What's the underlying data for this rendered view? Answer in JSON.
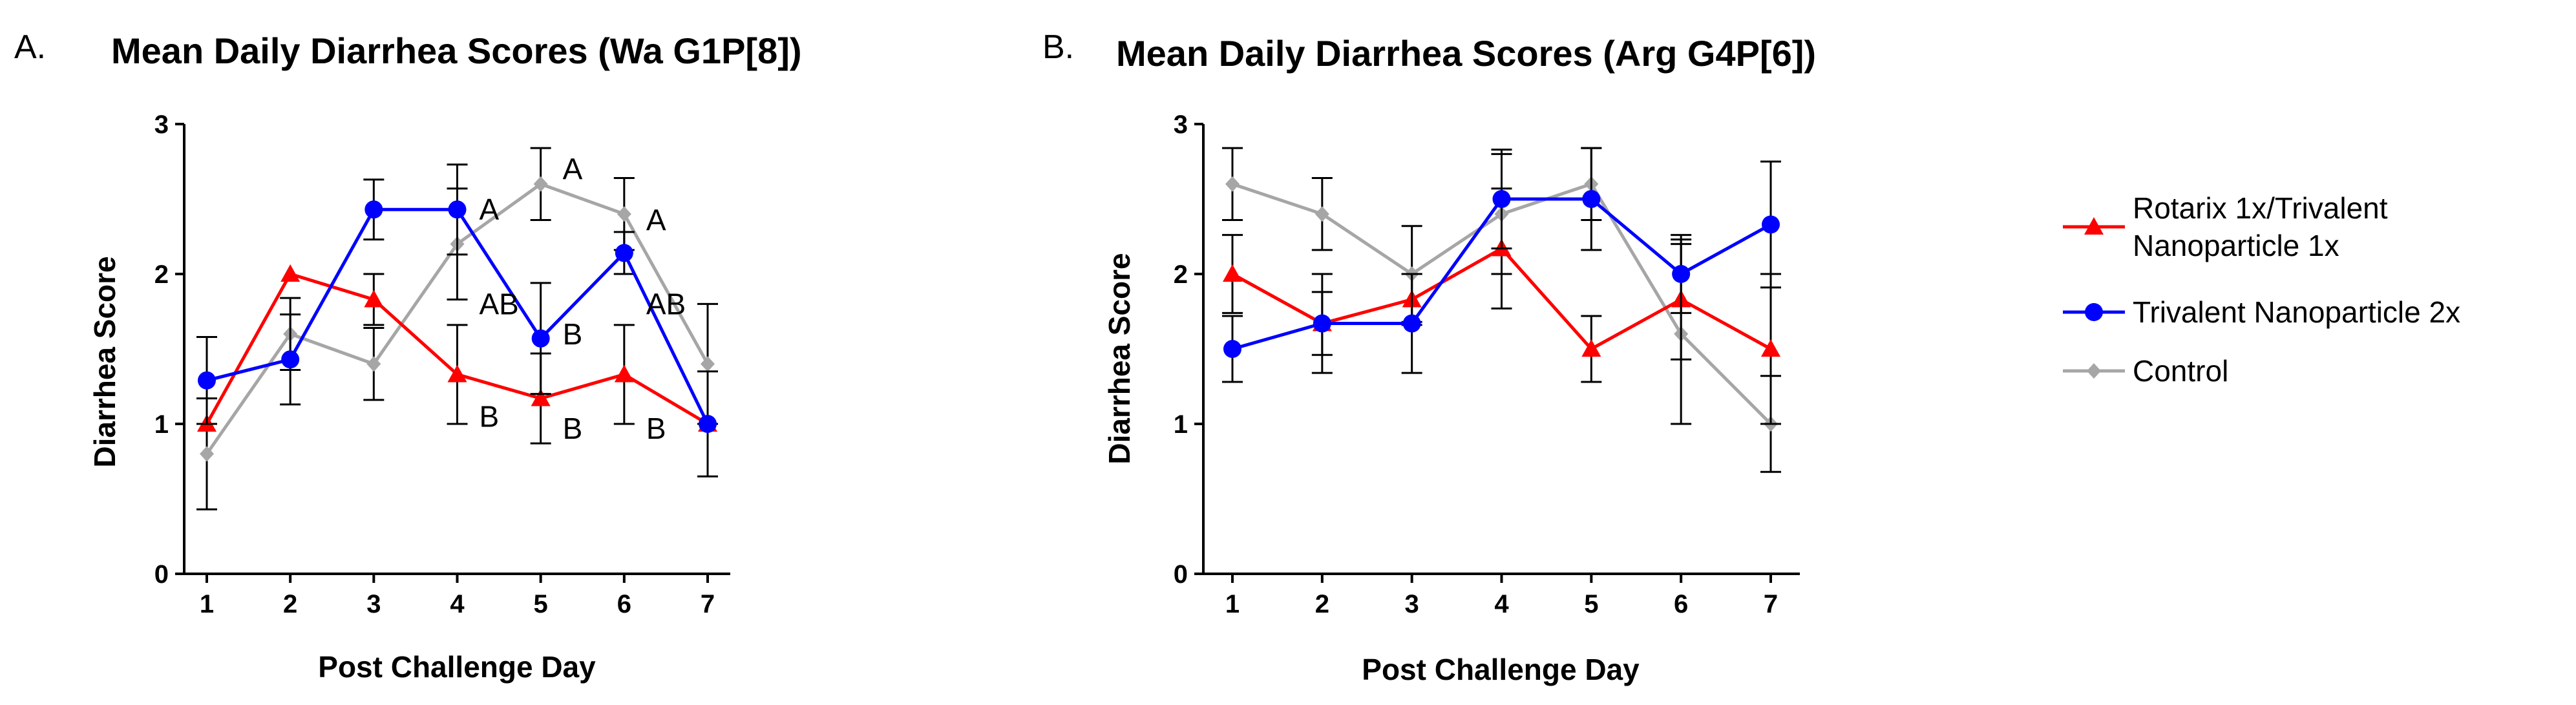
{
  "chart_data": [
    {
      "type": "line",
      "panel_label": "A.",
      "title": "Mean Daily Diarrhea Scores (Wa G1P[8])",
      "xlabel": "Post Challenge Day",
      "ylabel": "Diarrhea Score",
      "x": [
        1,
        2,
        3,
        4,
        5,
        6,
        7
      ],
      "xlim": [
        0.8,
        7.2
      ],
      "ylim": [
        0,
        3
      ],
      "yticks": [
        0,
        1,
        2,
        3
      ],
      "series": [
        {
          "name": "Rotarix 1x/Trivalent Nanoparticle 1x",
          "color": "#ff0000",
          "marker": "triangle",
          "values": [
            1.0,
            2.0,
            1.83,
            1.33,
            1.17,
            1.33,
            1.0
          ],
          "errors": [
            0.0,
            0.0,
            0.17,
            0.33,
            0.3,
            0.33,
            0.35
          ]
        },
        {
          "name": "Trivalent Nanoparticle 2x",
          "color": "#0000ff",
          "marker": "circle",
          "values": [
            1.29,
            1.43,
            2.43,
            2.43,
            1.57,
            2.14,
            1.0
          ],
          "errors": [
            0.29,
            0.3,
            0.2,
            0.3,
            0.37,
            0.14,
            0.0
          ]
        },
        {
          "name": "Control",
          "color": "#a6a6a6",
          "marker": "diamond",
          "values": [
            0.8,
            1.6,
            1.4,
            2.2,
            2.6,
            2.4,
            1.4
          ],
          "errors": [
            0.37,
            0.24,
            0.24,
            0.37,
            0.24,
            0.24,
            0.4
          ]
        }
      ],
      "annotations": [
        {
          "text": "A",
          "x": 4,
          "y": 2.43
        },
        {
          "text": "AB",
          "x": 4,
          "y": 1.8
        },
        {
          "text": "B",
          "x": 4,
          "y": 1.05
        },
        {
          "text": "A",
          "x": 5,
          "y": 2.7
        },
        {
          "text": "B",
          "x": 5,
          "y": 1.6
        },
        {
          "text": "B",
          "x": 5,
          "y": 0.97
        },
        {
          "text": "A",
          "x": 6,
          "y": 2.36
        },
        {
          "text": "AB",
          "x": 6,
          "y": 1.8
        },
        {
          "text": "B",
          "x": 6,
          "y": 0.97
        }
      ]
    },
    {
      "type": "line",
      "panel_label": "B.",
      "title": "Mean Daily Diarrhea Scores (Arg G4P[6])",
      "xlabel": "Post Challenge Day",
      "ylabel": "Diarrhea Score",
      "x": [
        1,
        2,
        3,
        4,
        5,
        6,
        7
      ],
      "xlim": [
        0.8,
        7.2
      ],
      "ylim": [
        0,
        3
      ],
      "yticks": [
        0,
        1,
        2,
        3
      ],
      "series": [
        {
          "name": "Rotarix 1x/Trivalent Nanoparticle 1x",
          "color": "#ff0000",
          "marker": "triangle",
          "values": [
            2.0,
            1.67,
            1.83,
            2.17,
            1.5,
            1.83,
            1.5
          ],
          "errors": [
            0.26,
            0.21,
            0.17,
            0.4,
            0.22,
            0.4,
            0.5
          ]
        },
        {
          "name": "Trivalent Nanoparticle 2x",
          "color": "#0000ff",
          "marker": "circle",
          "values": [
            1.5,
            1.67,
            1.67,
            2.5,
            2.5,
            2.0,
            2.33
          ],
          "errors": [
            0.22,
            0.33,
            0.33,
            0.33,
            0.34,
            0.26,
            0.42
          ]
        },
        {
          "name": "Control",
          "color": "#a6a6a6",
          "marker": "diamond",
          "values": [
            2.6,
            2.4,
            2.0,
            2.4,
            2.6,
            1.6,
            1.0
          ],
          "errors": [
            0.24,
            0.24,
            0.32,
            0.4,
            0.24,
            0.6,
            0.32
          ]
        }
      ]
    }
  ],
  "legend": [
    {
      "lines": [
        "Rotarix 1x/Trivalent",
        "Nanoparticle 1x"
      ],
      "color": "#ff0000",
      "marker": "triangle"
    },
    {
      "lines": [
        "Trivalent Nanoparticle 2x"
      ],
      "color": "#0000ff",
      "marker": "circle"
    },
    {
      "lines": [
        "Control"
      ],
      "color": "#a6a6a6",
      "marker": "diamond"
    }
  ]
}
